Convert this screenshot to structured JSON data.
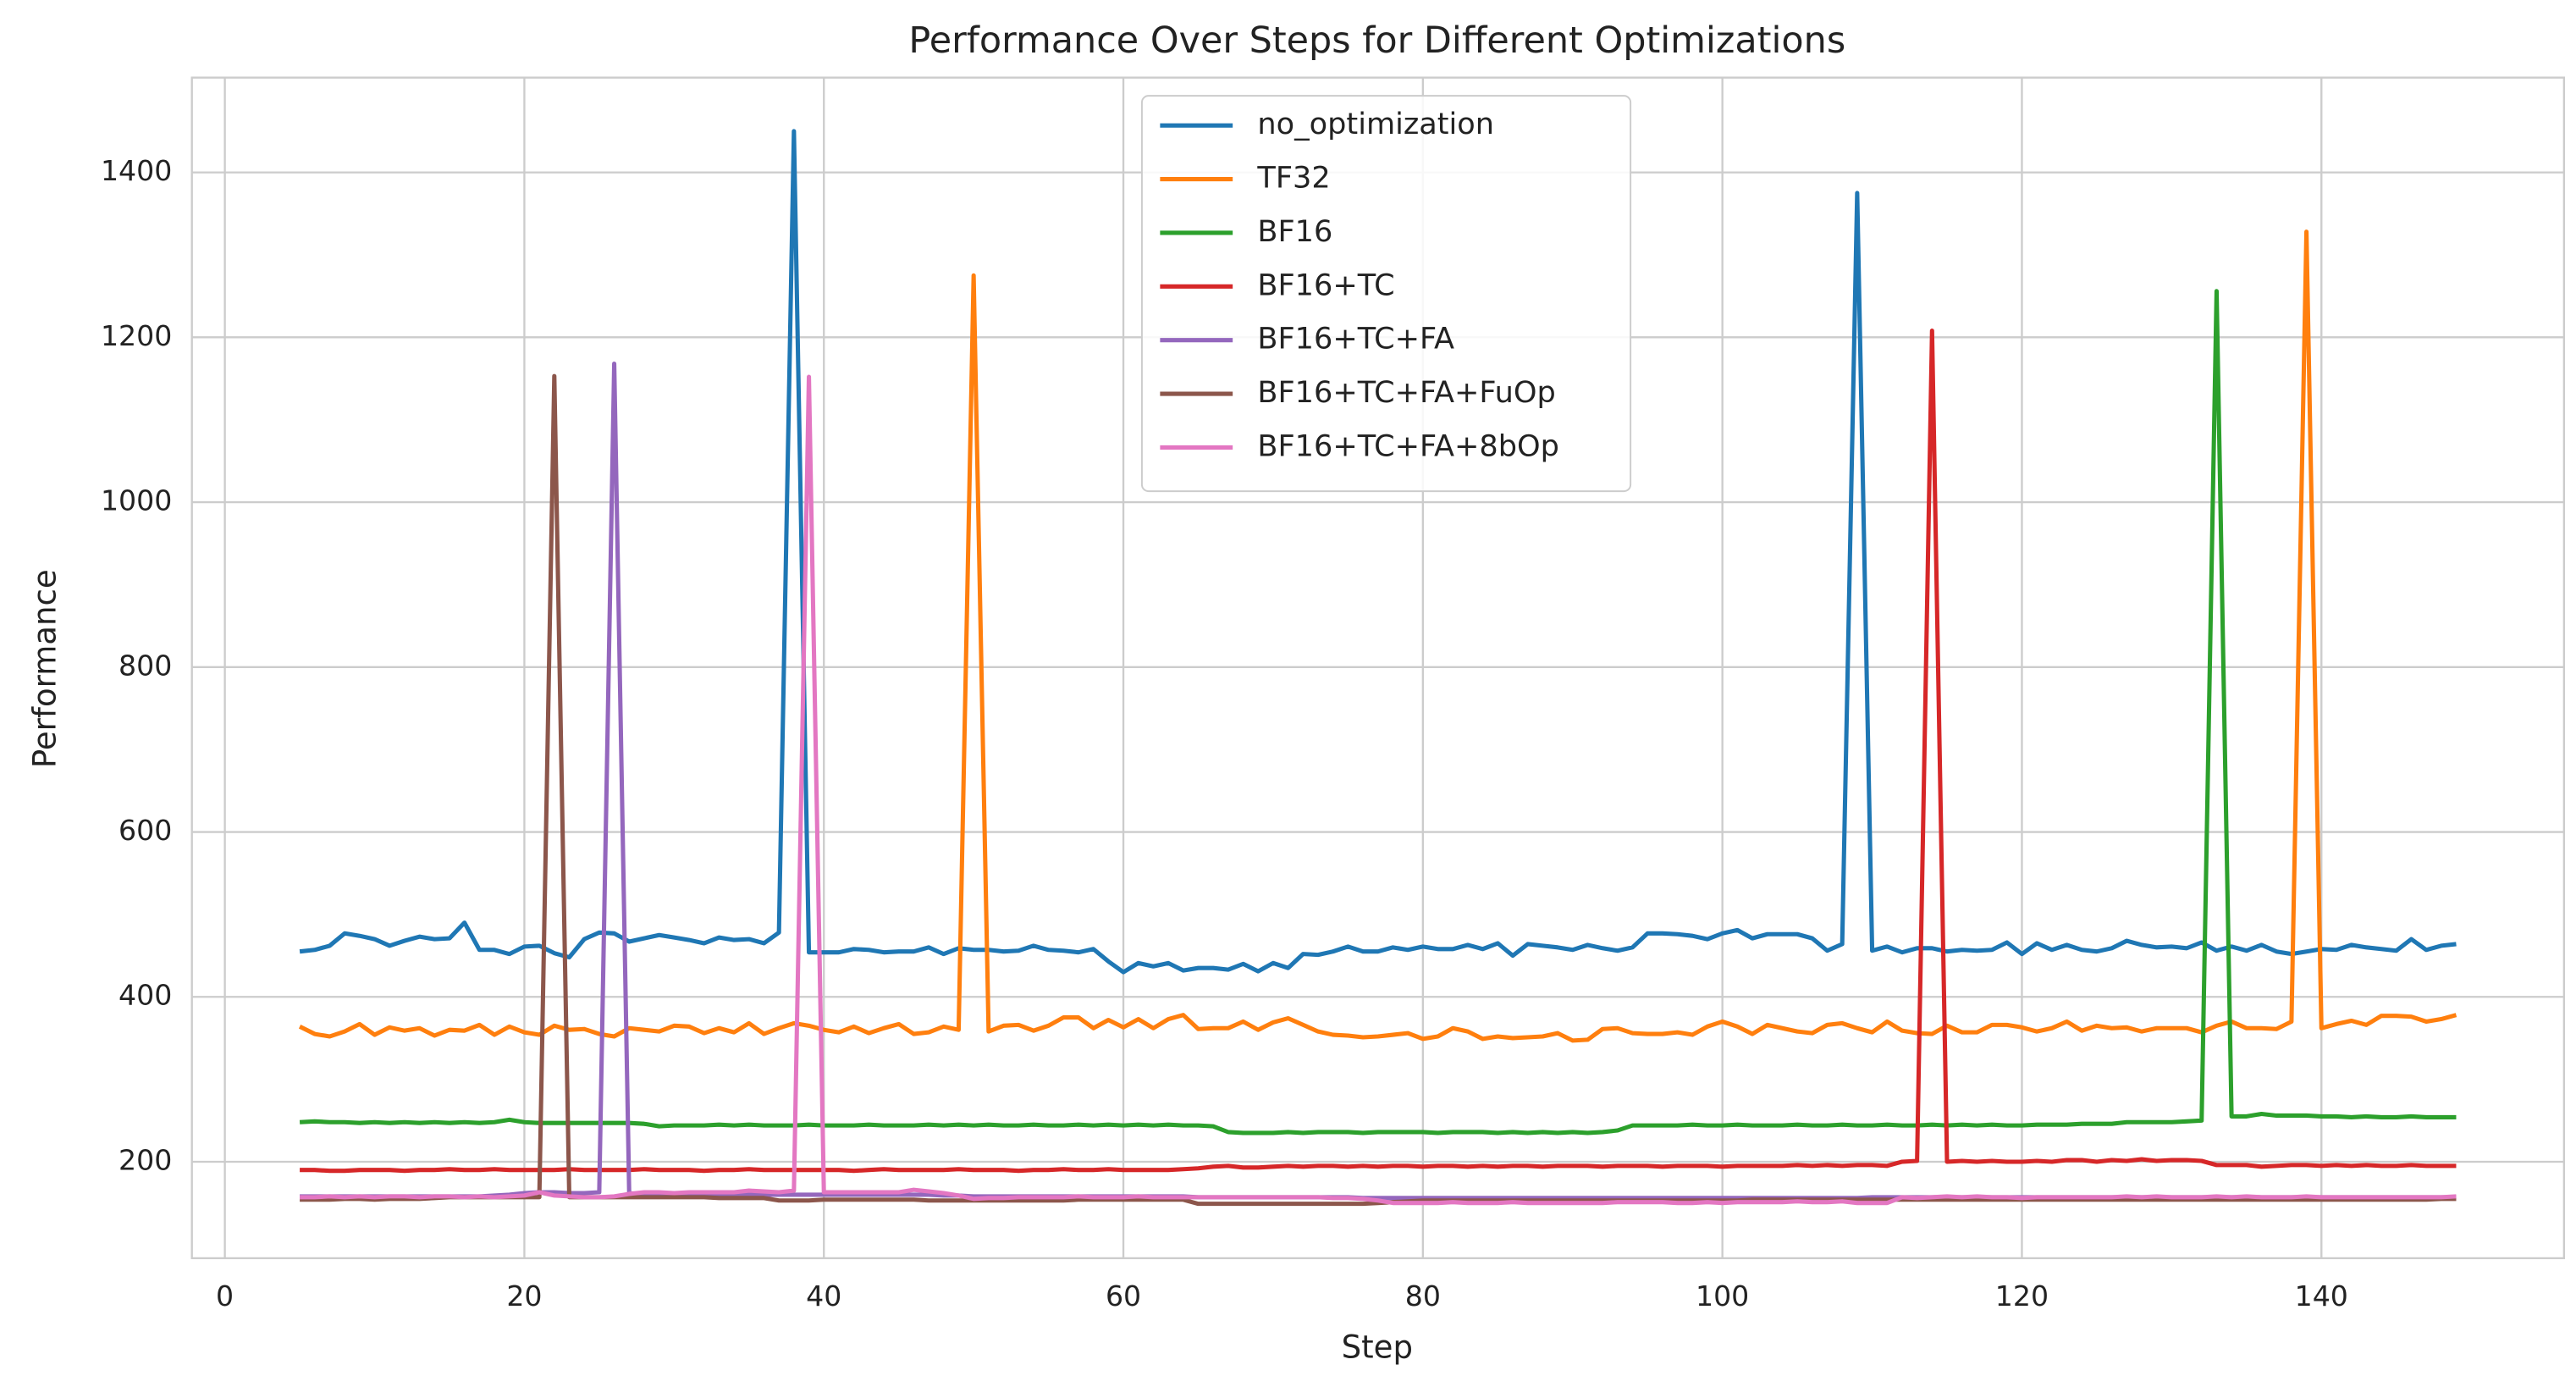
{
  "chart_data": {
    "type": "line",
    "title": "Performance Over Steps for Different Optimizations",
    "xlabel": "Step",
    "ylabel": "Performance",
    "x": [
      5,
      6,
      7,
      8,
      9,
      10,
      11,
      12,
      13,
      14,
      15,
      16,
      17,
      18,
      19,
      20,
      21,
      22,
      23,
      24,
      25,
      26,
      27,
      28,
      29,
      30,
      31,
      32,
      33,
      34,
      35,
      36,
      37,
      38,
      39,
      40,
      41,
      42,
      43,
      44,
      45,
      46,
      47,
      48,
      49,
      50,
      51,
      52,
      53,
      54,
      55,
      56,
      57,
      58,
      59,
      60,
      61,
      62,
      63,
      64,
      65,
      66,
      67,
      68,
      69,
      70,
      71,
      72,
      73,
      74,
      75,
      76,
      77,
      78,
      79,
      80,
      81,
      82,
      83,
      84,
      85,
      86,
      87,
      88,
      89,
      90,
      91,
      92,
      93,
      94,
      95,
      96,
      97,
      98,
      99,
      100,
      101,
      102,
      103,
      104,
      105,
      106,
      107,
      108,
      109,
      110,
      111,
      112,
      113,
      114,
      115,
      116,
      117,
      118,
      119,
      120,
      121,
      122,
      123,
      124,
      125,
      126,
      127,
      128,
      129,
      130,
      131,
      132,
      133,
      134,
      135,
      136,
      137,
      138,
      139,
      140,
      141,
      142,
      143,
      144,
      145,
      146,
      147,
      148,
      149
    ],
    "series": [
      {
        "name": "no_optimization",
        "color": "#1f77b4",
        "values": [
          455,
          457,
          462,
          477,
          474,
          470,
          462,
          468,
          473,
          470,
          471,
          490,
          457,
          457,
          452,
          461,
          462,
          453,
          448,
          470,
          478,
          477,
          467,
          471,
          475,
          472,
          469,
          465,
          472,
          469,
          470,
          465,
          478,
          1450,
          454,
          454,
          454,
          458,
          457,
          454,
          455,
          455,
          460,
          452,
          459,
          457,
          457,
          455,
          456,
          462,
          457,
          456,
          454,
          458,
          443,
          430,
          441,
          437,
          441,
          432,
          435,
          435,
          433,
          440,
          431,
          441,
          435,
          452,
          451,
          455,
          461,
          455,
          455,
          460,
          457,
          461,
          458,
          458,
          463,
          458,
          465,
          450,
          464,
          462,
          460,
          457,
          463,
          459,
          456,
          460,
          477,
          477,
          476,
          474,
          470,
          477,
          481,
          471,
          476,
          476,
          476,
          471,
          456,
          464,
          1375,
          456,
          461,
          454,
          459,
          459,
          455,
          457,
          456,
          457,
          466,
          452,
          465,
          457,
          463,
          457,
          455,
          459,
          468,
          463,
          460,
          461,
          459,
          466,
          456,
          461,
          456,
          463,
          455,
          452,
          455,
          458,
          457,
          463,
          460,
          458,
          456,
          470,
          457,
          462,
          464
        ]
      },
      {
        "name": "TF32",
        "color": "#ff7f0e",
        "values": [
          364,
          355,
          352,
          358,
          367,
          354,
          363,
          359,
          362,
          353,
          360,
          359,
          366,
          354,
          364,
          357,
          354,
          365,
          360,
          361,
          355,
          352,
          362,
          360,
          358,
          365,
          364,
          356,
          362,
          357,
          368,
          355,
          362,
          368,
          365,
          360,
          357,
          364,
          356,
          362,
          367,
          355,
          357,
          364,
          360,
          1275,
          358,
          365,
          366,
          359,
          365,
          375,
          375,
          362,
          372,
          363,
          373,
          362,
          373,
          378,
          361,
          362,
          362,
          370,
          360,
          369,
          374,
          366,
          358,
          354,
          353,
          351,
          352,
          354,
          356,
          349,
          352,
          362,
          358,
          349,
          352,
          350,
          351,
          352,
          356,
          347,
          348,
          361,
          362,
          356,
          355,
          355,
          357,
          354,
          364,
          370,
          364,
          355,
          366,
          362,
          358,
          356,
          366,
          368,
          362,
          357,
          370,
          359,
          356,
          355,
          365,
          357,
          357,
          366,
          366,
          363,
          358,
          362,
          370,
          359,
          365,
          362,
          363,
          358,
          362,
          362,
          362,
          357,
          365,
          370,
          362,
          362,
          361,
          370,
          1328,
          362,
          367,
          371,
          366,
          377,
          377,
          376,
          370,
          373,
          378
        ]
      },
      {
        "name": "BF16",
        "color": "#2ca02c",
        "values": [
          248,
          249,
          248,
          248,
          247,
          248,
          247,
          248,
          247,
          248,
          247,
          248,
          247,
          248,
          251,
          248,
          247,
          247,
          247,
          247,
          247,
          247,
          247,
          246,
          243,
          244,
          244,
          244,
          245,
          244,
          245,
          244,
          244,
          244,
          245,
          244,
          244,
          244,
          245,
          244,
          244,
          244,
          245,
          244,
          245,
          244,
          245,
          244,
          244,
          245,
          244,
          244,
          245,
          244,
          245,
          244,
          245,
          244,
          245,
          244,
          244,
          243,
          236,
          235,
          235,
          235,
          236,
          235,
          236,
          236,
          236,
          235,
          236,
          236,
          236,
          236,
          235,
          236,
          236,
          236,
          235,
          236,
          235,
          236,
          235,
          236,
          235,
          236,
          238,
          244,
          244,
          244,
          244,
          245,
          244,
          244,
          245,
          244,
          244,
          244,
          245,
          244,
          244,
          245,
          244,
          244,
          245,
          244,
          244,
          245,
          244,
          245,
          244,
          245,
          244,
          244,
          245,
          245,
          245,
          246,
          246,
          246,
          248,
          248,
          248,
          248,
          249,
          250,
          1256,
          255,
          255,
          258,
          256,
          256,
          256,
          255,
          255,
          254,
          255,
          254,
          254,
          255,
          254,
          254,
          254
        ]
      },
      {
        "name": "BF16+TC",
        "color": "#d62728",
        "values": [
          190,
          190,
          189,
          189,
          190,
          190,
          190,
          189,
          190,
          190,
          191,
          190,
          190,
          191,
          190,
          190,
          190,
          190,
          191,
          190,
          190,
          190,
          190,
          191,
          190,
          190,
          190,
          189,
          190,
          190,
          191,
          190,
          190,
          190,
          190,
          190,
          190,
          189,
          190,
          191,
          190,
          190,
          190,
          190,
          191,
          190,
          190,
          190,
          189,
          190,
          190,
          191,
          190,
          190,
          191,
          190,
          190,
          190,
          190,
          191,
          192,
          194,
          195,
          193,
          193,
          194,
          195,
          194,
          195,
          195,
          194,
          195,
          194,
          195,
          195,
          194,
          195,
          195,
          194,
          195,
          194,
          195,
          195,
          194,
          195,
          195,
          195,
          194,
          195,
          195,
          195,
          194,
          195,
          195,
          195,
          194,
          195,
          195,
          195,
          195,
          196,
          195,
          196,
          195,
          196,
          196,
          195,
          200,
          201,
          1208,
          200,
          201,
          200,
          201,
          200,
          200,
          201,
          200,
          202,
          202,
          200,
          202,
          201,
          203,
          201,
          202,
          202,
          201,
          196,
          196,
          196,
          194,
          195,
          196,
          196,
          195,
          196,
          195,
          196,
          195,
          195,
          196,
          195,
          195,
          195
        ]
      },
      {
        "name": "BF16+TC+FA",
        "color": "#9467bd",
        "values": [
          158,
          158,
          158,
          158,
          158,
          158,
          158,
          158,
          158,
          158,
          158,
          158,
          158,
          159,
          160,
          162,
          163,
          163,
          162,
          162,
          163,
          1168,
          162,
          160,
          160,
          160,
          160,
          160,
          160,
          160,
          160,
          160,
          160,
          160,
          160,
          160,
          160,
          160,
          160,
          160,
          160,
          160,
          160,
          159,
          159,
          158,
          158,
          158,
          158,
          158,
          158,
          158,
          158,
          158,
          158,
          158,
          158,
          158,
          158,
          158,
          157,
          157,
          157,
          157,
          157,
          157,
          157,
          157,
          157,
          157,
          157,
          156,
          156,
          156,
          156,
          156,
          156,
          156,
          156,
          156,
          156,
          156,
          156,
          156,
          156,
          156,
          156,
          156,
          156,
          156,
          156,
          156,
          156,
          156,
          156,
          156,
          156,
          156,
          156,
          156,
          156,
          156,
          156,
          156,
          156,
          157,
          157,
          157,
          157,
          157,
          157,
          157,
          157,
          157,
          157,
          157,
          157,
          157,
          157,
          157,
          157,
          157,
          157,
          157,
          157,
          157,
          157,
          157,
          157,
          157,
          157,
          157,
          157,
          157,
          157,
          157,
          157,
          157,
          157,
          157,
          157,
          157,
          157,
          157,
          157
        ]
      },
      {
        "name": "BF16+TC+FA+FuOp",
        "color": "#8c564b",
        "values": [
          154,
          154,
          154,
          155,
          155,
          154,
          155,
          155,
          155,
          156,
          157,
          157,
          157,
          157,
          157,
          157,
          157,
          1153,
          157,
          157,
          157,
          157,
          157,
          157,
          157,
          157,
          157,
          157,
          156,
          156,
          156,
          156,
          153,
          153,
          153,
          154,
          154,
          154,
          154,
          154,
          154,
          154,
          153,
          153,
          153,
          153,
          153,
          153,
          153,
          153,
          153,
          153,
          154,
          154,
          154,
          154,
          154,
          154,
          154,
          154,
          149,
          149,
          149,
          149,
          149,
          149,
          149,
          149,
          149,
          149,
          149,
          149,
          150,
          151,
          152,
          153,
          153,
          153,
          153,
          153,
          153,
          153,
          153,
          153,
          153,
          153,
          153,
          153,
          153,
          153,
          153,
          153,
          153,
          153,
          153,
          153,
          153,
          154,
          154,
          154,
          154,
          154,
          154,
          154,
          154,
          154,
          154,
          154,
          154,
          154,
          154,
          154,
          154,
          154,
          154,
          154,
          154,
          154,
          154,
          154,
          154,
          154,
          154,
          154,
          154,
          154,
          154,
          154,
          154,
          154,
          154,
          154,
          154,
          154,
          154,
          154,
          154,
          154,
          154,
          154,
          154,
          154,
          154,
          155,
          155
        ]
      },
      {
        "name": "BF16+TC+FA+8bOp",
        "color": "#e377c2",
        "values": [
          157,
          157,
          158,
          157,
          158,
          157,
          158,
          158,
          157,
          158,
          158,
          157,
          158,
          157,
          158,
          159,
          163,
          159,
          158,
          157,
          157,
          158,
          161,
          163,
          163,
          162,
          163,
          163,
          163,
          163,
          165,
          164,
          163,
          165,
          1152,
          163,
          163,
          163,
          163,
          163,
          163,
          166,
          164,
          162,
          159,
          155,
          156,
          156,
          157,
          157,
          157,
          157,
          158,
          157,
          157,
          157,
          158,
          157,
          157,
          157,
          157,
          157,
          157,
          157,
          157,
          157,
          157,
          157,
          157,
          156,
          156,
          155,
          153,
          150,
          150,
          150,
          150,
          151,
          150,
          150,
          150,
          151,
          150,
          150,
          150,
          150,
          150,
          150,
          151,
          151,
          151,
          151,
          150,
          150,
          151,
          150,
          151,
          151,
          151,
          151,
          152,
          151,
          151,
          152,
          150,
          150,
          150,
          157,
          156,
          157,
          158,
          157,
          158,
          157,
          157,
          156,
          157,
          157,
          157,
          157,
          157,
          157,
          158,
          157,
          158,
          157,
          157,
          157,
          158,
          157,
          158,
          157,
          157,
          157,
          158,
          157,
          157,
          157,
          157,
          157,
          157,
          157,
          157,
          157,
          158
        ]
      }
    ],
    "xlim": [
      -2.2,
      156.2
    ],
    "ylim": [
      83,
      1515
    ],
    "xticks": [
      0,
      20,
      40,
      60,
      80,
      100,
      120,
      140
    ],
    "yticks": [
      200,
      400,
      600,
      800,
      1000,
      1200,
      1400
    ],
    "grid": true,
    "legend": "upper center"
  }
}
